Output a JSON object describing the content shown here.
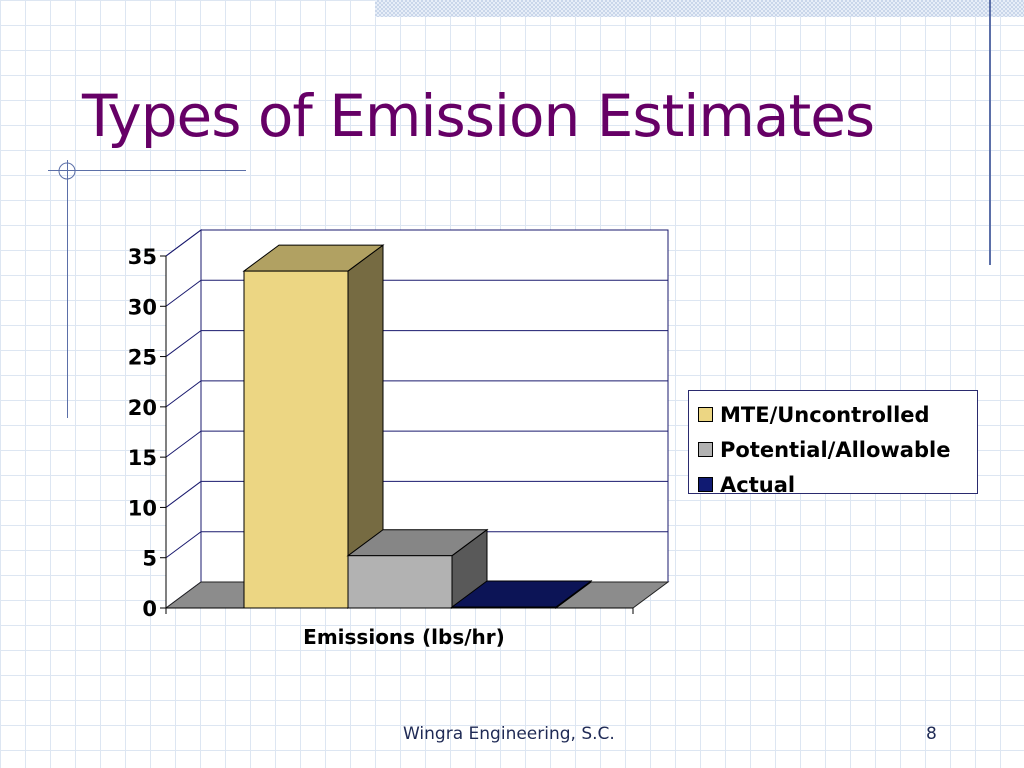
{
  "slide": {
    "title": "Types of Emission Estimates",
    "footer": "Wingra Engineering, S.C.",
    "page_number": "8"
  },
  "chart_data": {
    "type": "bar",
    "categories": [
      "Emissions (lbs/hr)"
    ],
    "xlabel": "Emissions (lbs/hr)",
    "ylabel": "",
    "ylim": [
      0,
      35
    ],
    "yticks": [
      0,
      5,
      10,
      15,
      20,
      25,
      30,
      35
    ],
    "grid": true,
    "three_d": true,
    "legend_position": "right",
    "series": [
      {
        "name": "MTE/Uncontrolled",
        "values": [
          33.5
        ],
        "color": "#ecd683"
      },
      {
        "name": "Potential/Allowable",
        "values": [
          5.2
        ],
        "color": "#b2b2b2"
      },
      {
        "name": "Actual",
        "values": [
          0.1
        ],
        "color": "#101a72"
      }
    ]
  }
}
